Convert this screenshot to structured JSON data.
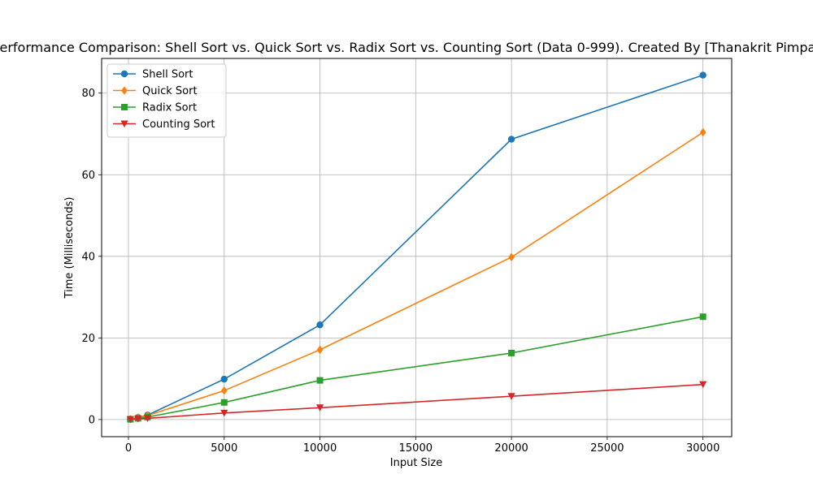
{
  "chart_data": {
    "type": "line",
    "title": "Performance Comparison: Shell Sort vs. Quick Sort vs. Radix Sort vs. Counting Sort (Data 0-999). Created By [Thanakrit Pimpa]",
    "xlabel": "Input Size",
    "ylabel": "Time (Milliseconds)",
    "xlim": [
      -1400,
      31500
    ],
    "ylim": [
      -4.2,
      88.5
    ],
    "xticks": [
      0,
      5000,
      10000,
      15000,
      20000,
      25000,
      30000
    ],
    "yticks": [
      0,
      20,
      40,
      60,
      80
    ],
    "grid": true,
    "legend_position": "top-left",
    "x": [
      100,
      500,
      1000,
      5000,
      10000,
      20000,
      30000
    ],
    "series": [
      {
        "name": "Shell Sort",
        "color": "#1f77b4",
        "marker": "circle",
        "values": [
          0.1,
          0.5,
          1.1,
          9.9,
          23.2,
          68.7,
          84.4
        ]
      },
      {
        "name": "Quick Sort",
        "color": "#ff7f0e",
        "marker": "diamond",
        "values": [
          0.1,
          0.5,
          1.0,
          7.1,
          17.1,
          39.8,
          70.4
        ]
      },
      {
        "name": "Radix Sort",
        "color": "#2ca02c",
        "marker": "square",
        "values": [
          0.05,
          0.3,
          0.6,
          4.2,
          9.6,
          16.3,
          25.2
        ]
      },
      {
        "name": "Counting Sort",
        "color": "#d62728",
        "marker": "triangle-down",
        "values": [
          0.05,
          0.15,
          0.3,
          1.6,
          2.9,
          5.7,
          8.6
        ]
      }
    ]
  }
}
